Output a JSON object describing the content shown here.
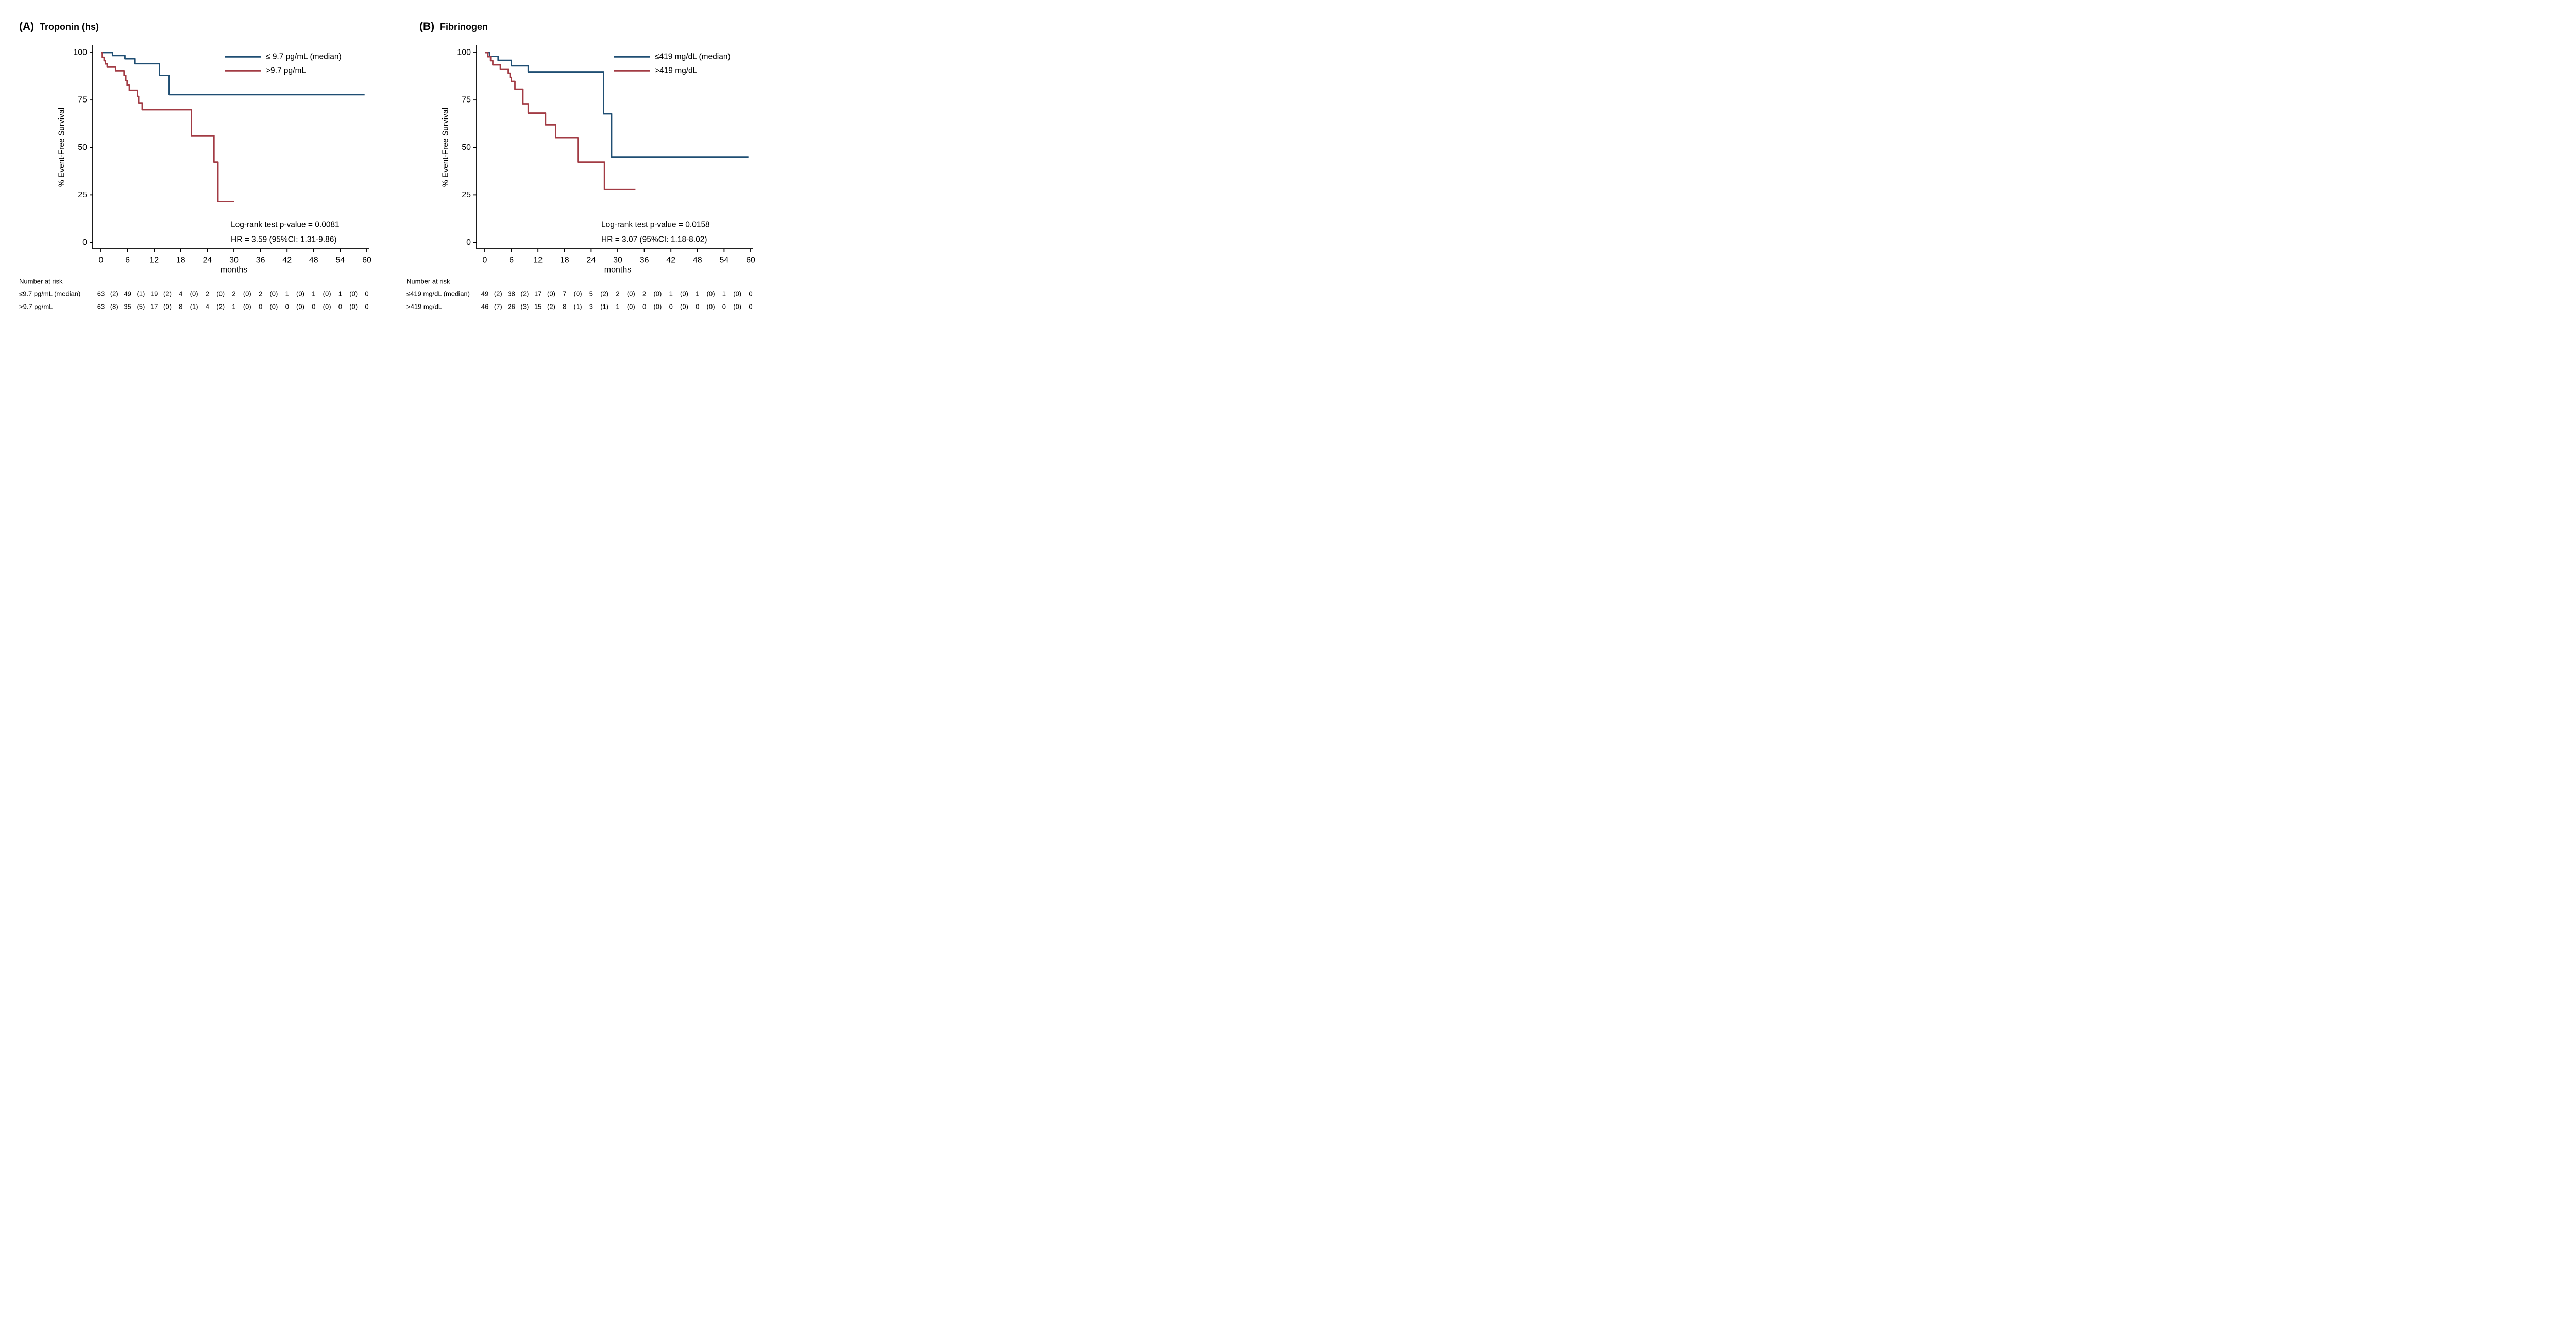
{
  "colors": {
    "blue": "#1f4e73",
    "red": "#a23b44",
    "axis": "#000000"
  },
  "chart_data": [
    {
      "type": "line",
      "subtype": "kaplan-meier-step",
      "panel_label": "(A)",
      "title": "Troponin (hs)",
      "ylabel": "% Event-Free Survival",
      "xlabel": "months",
      "xlim": [
        0,
        60
      ],
      "ylim": [
        0,
        100
      ],
      "x_ticks": [
        0,
        6,
        12,
        18,
        24,
        30,
        36,
        42,
        48,
        54,
        60
      ],
      "y_ticks": [
        0,
        25,
        50,
        75,
        100
      ],
      "grid": false,
      "legend_position": "top-right-inside",
      "legend": [
        {
          "label": "≤ 9.7 pg/mL (median)",
          "color": "blue"
        },
        {
          "label": ">9.7 pg/mL",
          "color": "red"
        }
      ],
      "annotation": [
        "Log-rank test p-value = 0.0081",
        "HR = 3.59 (95%CI: 1.31-9.86)"
      ],
      "series": [
        {
          "name": "≤ 9.7 pg/mL (median)",
          "color": "blue",
          "end_t": 59.5,
          "points": [
            [
              0,
              100
            ],
            [
              2.6,
              98.4
            ],
            [
              5.4,
              96.7
            ],
            [
              7.7,
              94.1
            ],
            [
              13.2,
              87.9
            ],
            [
              15.4,
              77.8
            ]
          ]
        },
        {
          "name": ">9.7 pg/mL",
          "color": "red",
          "end_t": 30,
          "points": [
            [
              0,
              100
            ],
            [
              0.3,
              97.5
            ],
            [
              0.7,
              95.7
            ],
            [
              1.0,
              94.0
            ],
            [
              1.4,
              92.3
            ],
            [
              3.3,
              90.4
            ],
            [
              5.2,
              87.9
            ],
            [
              5.6,
              85.2
            ],
            [
              5.9,
              82.8
            ],
            [
              6.4,
              80.1
            ],
            [
              8.2,
              76.9
            ],
            [
              8.5,
              73.5
            ],
            [
              9.3,
              69.9
            ],
            [
              20.4,
              56.2
            ],
            [
              25.5,
              42.3
            ],
            [
              26.4,
              21.4
            ]
          ]
        }
      ],
      "risk_table": {
        "title": "Number at risk",
        "rows": [
          {
            "label": "≤9.7 pg/mL (median)",
            "counts": [
              63,
              49,
              19,
              4,
              2,
              2,
              2,
              1,
              1,
              1,
              0
            ],
            "events": [
              2,
              1,
              2,
              0,
              0,
              0,
              0,
              0,
              0,
              0
            ]
          },
          {
            "label": ">9.7 pg/mL",
            "counts": [
              63,
              35,
              17,
              8,
              4,
              1,
              0,
              0,
              0,
              0,
              0
            ],
            "events": [
              8,
              5,
              0,
              1,
              2,
              0,
              0,
              0,
              0,
              0
            ]
          }
        ]
      }
    },
    {
      "type": "line",
      "subtype": "kaplan-meier-step",
      "panel_label": "(B)",
      "title": "Fibrinogen",
      "ylabel": "% Event-Free Survival",
      "xlabel": "months",
      "xlim": [
        0,
        60
      ],
      "ylim": [
        0,
        100
      ],
      "x_ticks": [
        0,
        6,
        12,
        18,
        24,
        30,
        36,
        42,
        48,
        54,
        60
      ],
      "y_ticks": [
        0,
        25,
        50,
        75,
        100
      ],
      "grid": false,
      "legend_position": "top-right-inside",
      "legend": [
        {
          "label": "≤419 mg/dL (median)",
          "color": "blue"
        },
        {
          "label": ">419 mg/dL",
          "color": "red"
        }
      ],
      "annotation": [
        "Log-rank test p-value = 0.0158",
        "HR = 3.07 (95%CI: 1.18-8.02)"
      ],
      "series": [
        {
          "name": "≤419 mg/dL (median)",
          "color": "blue",
          "end_t": 59.5,
          "points": [
            [
              0,
              100
            ],
            [
              1.1,
              98.0
            ],
            [
              3.0,
              95.9
            ],
            [
              6.0,
              93.0
            ],
            [
              9.8,
              89.8
            ],
            [
              26.8,
              67.7
            ],
            [
              28.6,
              45.0
            ]
          ]
        },
        {
          "name": ">419 mg/dL",
          "color": "red",
          "end_t": 34,
          "points": [
            [
              0,
              100
            ],
            [
              0.7,
              97.8
            ],
            [
              1.3,
              95.7
            ],
            [
              1.8,
              93.5
            ],
            [
              3.5,
              91.3
            ],
            [
              5.3,
              89.1
            ],
            [
              5.7,
              86.9
            ],
            [
              6.0,
              84.8
            ],
            [
              6.8,
              80.7
            ],
            [
              8.6,
              73.0
            ],
            [
              9.8,
              68.1
            ],
            [
              13.7,
              61.9
            ],
            [
              16.0,
              55.2
            ],
            [
              21.0,
              42.3
            ],
            [
              27.0,
              28.0
            ]
          ]
        }
      ],
      "risk_table": {
        "title": "Number at risk",
        "rows": [
          {
            "label": "≤419 mg/dL (median)",
            "counts": [
              49,
              38,
              17,
              7,
              5,
              2,
              2,
              1,
              1,
              1,
              0
            ],
            "events": [
              2,
              2,
              0,
              0,
              2,
              0,
              0,
              0,
              0,
              0
            ]
          },
          {
            "label": ">419 mg/dL",
            "counts": [
              46,
              26,
              15,
              8,
              3,
              1,
              0,
              0,
              0,
              0,
              0
            ],
            "events": [
              7,
              3,
              2,
              1,
              1,
              0,
              0,
              0,
              0,
              0
            ]
          }
        ]
      }
    }
  ]
}
